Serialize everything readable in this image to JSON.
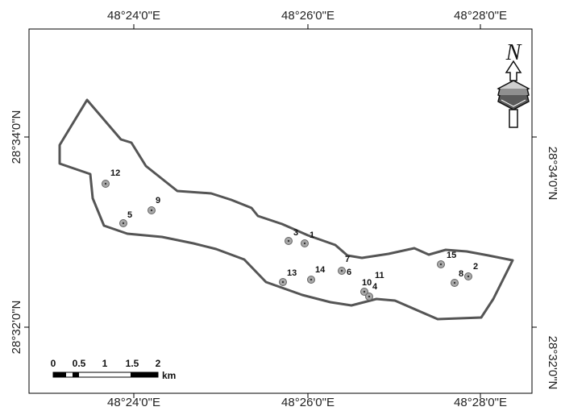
{
  "colors": {
    "frame": "#000000",
    "boundary": "#555555",
    "site_fill": "#a9a9a9",
    "site_core": "#333333"
  },
  "axes": {
    "top": [
      "48°24'0\"E",
      "48°26'0\"E",
      "48°28'0\"E"
    ],
    "bottom": [
      "48°24'0\"E",
      "48°26'0\"E",
      "48°28'0\"E"
    ],
    "left": [
      "28°34'0\"N",
      "28°32'0\"N"
    ],
    "right": [
      "28°34'0\"N",
      "28°32'0\"N"
    ]
  },
  "sites": [
    "12",
    "9",
    "5",
    "3",
    "1",
    "7",
    "6",
    "13",
    "14",
    "10",
    "11",
    "4",
    "15",
    "8",
    "2"
  ],
  "scale_bar": {
    "ticks": [
      "0",
      "0.5",
      "1",
      "1.5",
      "2"
    ],
    "unit": "km"
  },
  "north_arrow": {
    "label": "N",
    "icon": "north-arrow-icon"
  }
}
